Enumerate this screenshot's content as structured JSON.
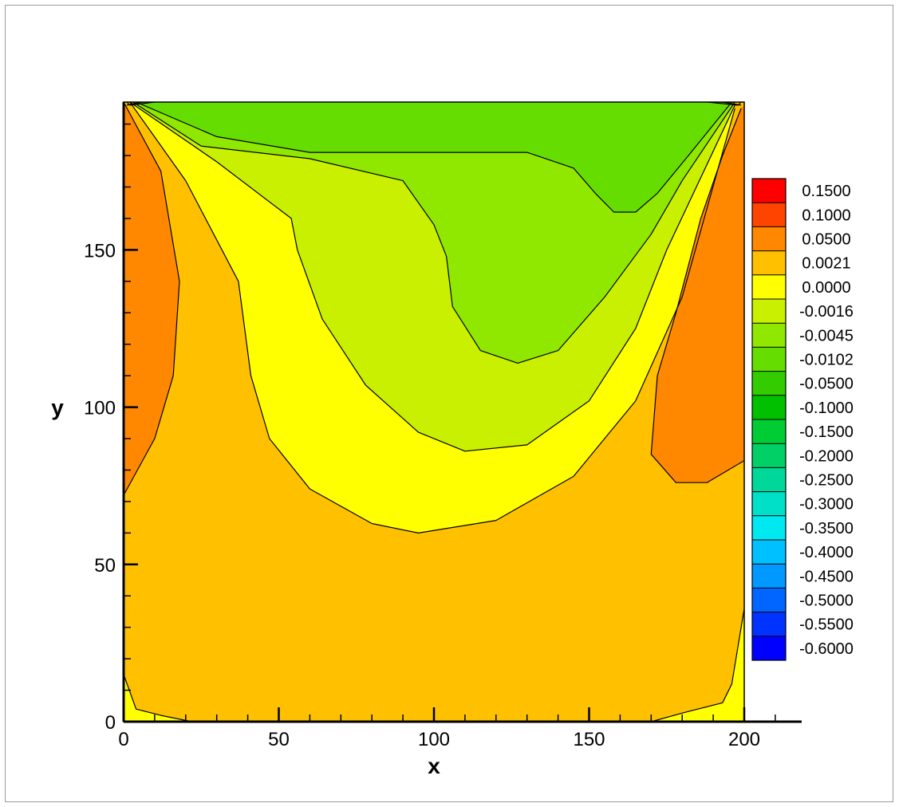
{
  "chart_data": {
    "type": "contour",
    "title": "",
    "xlabel": "x",
    "ylabel": "y",
    "xlim": [
      0,
      200
    ],
    "ylim": [
      0,
      197
    ],
    "x_ticks": [
      "0",
      "50",
      "100",
      "150",
      "200"
    ],
    "y_ticks": [
      "0",
      "50",
      "100",
      "150"
    ],
    "legend": {
      "position": "right",
      "levels": [
        "0.1500",
        "0.1000",
        "0.0500",
        "0.0021",
        "0.0000",
        "-0.0016",
        "-0.0045",
        "-0.0102",
        "-0.0500",
        "-0.1000",
        "-0.1500",
        "-0.2000",
        "-0.2500",
        "-0.3000",
        "-0.3500",
        "-0.4000",
        "-0.4500",
        "-0.5000",
        "-0.5500",
        "-0.6000"
      ],
      "colors": [
        "#ff0000",
        "#ff4400",
        "#ff8800",
        "#ffc000",
        "#ffff00",
        "#c8f000",
        "#90e800",
        "#66dd00",
        "#33cc00",
        "#00c000",
        "#00cc33",
        "#00d066",
        "#00d899",
        "#00e0c8",
        "#00e8f0",
        "#00c0ff",
        "#0099ff",
        "#0066ff",
        "#0033ff",
        "#0000ff"
      ]
    },
    "regions": [
      {
        "level": "0.0021",
        "color": "#ffc000",
        "points": [
          [
            0,
            0
          ],
          [
            200,
            0
          ],
          [
            200,
            197
          ],
          [
            0,
            197
          ]
        ]
      },
      {
        "level": "0.0000",
        "color": "#ffff00",
        "points": [
          [
            2,
            197
          ],
          [
            20,
            172
          ],
          [
            37,
            140
          ],
          [
            41,
            110
          ],
          [
            47,
            90
          ],
          [
            60,
            74
          ],
          [
            80,
            63
          ],
          [
            95,
            60
          ],
          [
            120,
            64
          ],
          [
            145,
            78
          ],
          [
            165,
            102
          ],
          [
            180,
            135
          ],
          [
            197,
            195
          ]
        ]
      },
      {
        "level": "-0.0016",
        "color": "#c8f000",
        "points": [
          [
            2,
            197
          ],
          [
            30,
            178
          ],
          [
            54,
            160
          ],
          [
            56,
            150
          ],
          [
            64,
            128
          ],
          [
            78,
            107
          ],
          [
            95,
            92
          ],
          [
            110,
            86
          ],
          [
            130,
            88
          ],
          [
            150,
            102
          ],
          [
            165,
            125
          ],
          [
            175,
            150
          ],
          [
            197,
            196
          ]
        ]
      },
      {
        "level": "-0.0045",
        "color": "#90e800",
        "points": [
          [
            3,
            197
          ],
          [
            25,
            183
          ],
          [
            60,
            179
          ],
          [
            90,
            172
          ],
          [
            100,
            158
          ],
          [
            104,
            148
          ],
          [
            106,
            132
          ],
          [
            115,
            118
          ],
          [
            127,
            114
          ],
          [
            140,
            118
          ],
          [
            155,
            135
          ],
          [
            170,
            155
          ],
          [
            180,
            172
          ],
          [
            197,
            197
          ]
        ]
      },
      {
        "level": "-0.0102",
        "color": "#66dd00",
        "points": [
          [
            4,
            197
          ],
          [
            30,
            186
          ],
          [
            60,
            181
          ],
          [
            100,
            181
          ],
          [
            130,
            181
          ],
          [
            145,
            176
          ],
          [
            152,
            168
          ],
          [
            158,
            162
          ],
          [
            165,
            162
          ],
          [
            172,
            168
          ],
          [
            182,
            180
          ],
          [
            196,
            197
          ]
        ]
      },
      {
        "level": "0.0500",
        "color": "#ff8800",
        "points": [
          [
            0,
            197
          ],
          [
            12,
            175
          ],
          [
            18,
            140
          ],
          [
            16,
            110
          ],
          [
            10,
            90
          ],
          [
            0,
            72
          ]
        ]
      },
      {
        "level": "0.0500",
        "color": "#ff8800",
        "points": [
          [
            199,
            195
          ],
          [
            193,
            180
          ],
          [
            186,
            160
          ],
          [
            178,
            130
          ],
          [
            172,
            110
          ],
          [
            170,
            85
          ],
          [
            178,
            76
          ],
          [
            188,
            76
          ],
          [
            200,
            83
          ],
          [
            200,
            196
          ]
        ]
      },
      {
        "level": "0.0000",
        "color": "#ffff00",
        "points": [
          [
            0,
            0
          ],
          [
            0,
            15
          ],
          [
            4,
            4
          ],
          [
            12,
            2
          ],
          [
            22,
            0
          ]
        ]
      },
      {
        "level": "0.0000",
        "color": "#ffff00",
        "points": [
          [
            170,
            0
          ],
          [
            181,
            3
          ],
          [
            193,
            6
          ],
          [
            196,
            12
          ],
          [
            200,
            36
          ],
          [
            200,
            0
          ]
        ]
      }
    ],
    "contour_lines": [
      [
        [
          2,
          197
        ],
        [
          20,
          172
        ],
        [
          37,
          140
        ],
        [
          41,
          110
        ],
        [
          47,
          90
        ],
        [
          60,
          74
        ],
        [
          80,
          63
        ],
        [
          95,
          60
        ],
        [
          120,
          64
        ],
        [
          145,
          78
        ],
        [
          165,
          102
        ],
        [
          180,
          135
        ],
        [
          197,
          195
        ]
      ],
      [
        [
          2,
          197
        ],
        [
          30,
          178
        ],
        [
          54,
          160
        ],
        [
          56,
          150
        ],
        [
          64,
          128
        ],
        [
          78,
          107
        ],
        [
          95,
          92
        ],
        [
          110,
          86
        ],
        [
          130,
          88
        ],
        [
          150,
          102
        ],
        [
          165,
          125
        ],
        [
          175,
          150
        ],
        [
          197,
          196
        ]
      ],
      [
        [
          3,
          197
        ],
        [
          25,
          183
        ],
        [
          60,
          179
        ],
        [
          90,
          172
        ],
        [
          100,
          158
        ],
        [
          104,
          148
        ],
        [
          106,
          132
        ],
        [
          115,
          118
        ],
        [
          127,
          114
        ],
        [
          140,
          118
        ],
        [
          155,
          135
        ],
        [
          170,
          155
        ],
        [
          180,
          172
        ],
        [
          197,
          197
        ]
      ],
      [
        [
          4,
          197
        ],
        [
          30,
          186
        ],
        [
          60,
          181
        ],
        [
          100,
          181
        ],
        [
          130,
          181
        ],
        [
          145,
          176
        ],
        [
          152,
          168
        ],
        [
          158,
          162
        ],
        [
          165,
          162
        ],
        [
          172,
          168
        ],
        [
          182,
          180
        ],
        [
          196,
          197
        ]
      ],
      [
        [
          0,
          197
        ],
        [
          12,
          175
        ],
        [
          18,
          140
        ],
        [
          16,
          110
        ],
        [
          10,
          90
        ],
        [
          0,
          72
        ]
      ],
      [
        [
          199,
          195
        ],
        [
          193,
          180
        ],
        [
          186,
          160
        ],
        [
          178,
          130
        ],
        [
          172,
          110
        ],
        [
          170,
          85
        ],
        [
          178,
          76
        ],
        [
          188,
          76
        ],
        [
          200,
          83
        ]
      ],
      [
        [
          0,
          15
        ],
        [
          4,
          4
        ],
        [
          12,
          2
        ],
        [
          22,
          0
        ]
      ],
      [
        [
          170,
          0
        ],
        [
          181,
          3
        ],
        [
          193,
          6
        ],
        [
          196,
          12
        ],
        [
          200,
          36
        ]
      ],
      [
        [
          1,
          196
        ],
        [
          6,
          197
        ]
      ],
      [
        [
          1,
          197
        ],
        [
          2,
          196
        ],
        [
          10,
          197
        ]
      ],
      [
        [
          193,
          197
        ],
        [
          199,
          196
        ]
      ],
      [
        [
          188,
          197
        ],
        [
          198,
          196
        ],
        [
          199,
          197
        ]
      ]
    ]
  }
}
